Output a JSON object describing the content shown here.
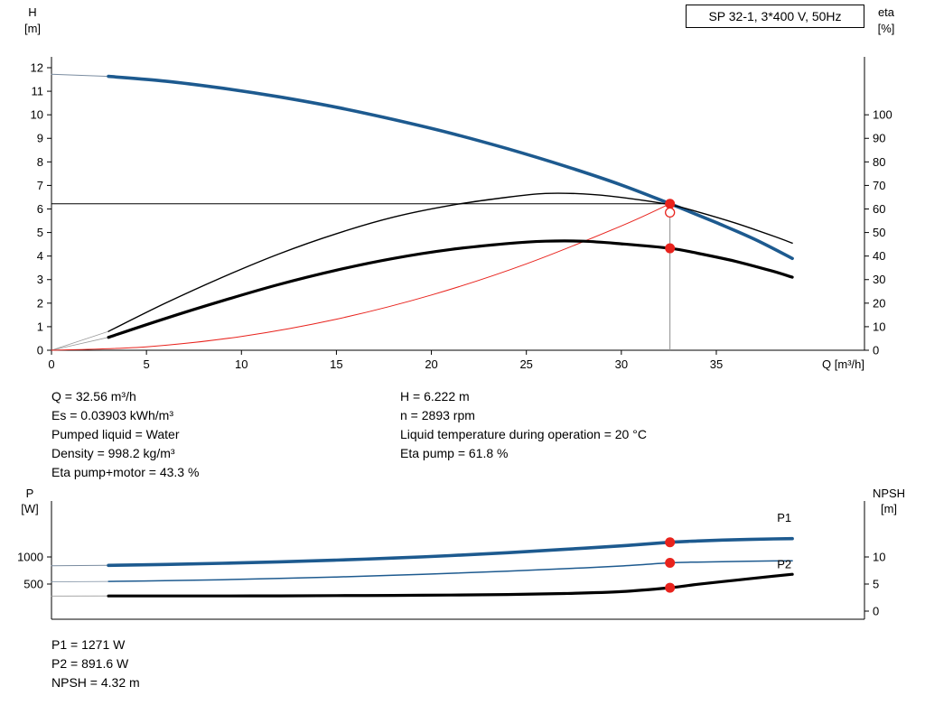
{
  "title_box": "SP 32-1, 3*400 V, 50Hz",
  "duty_info": {
    "col1": [
      "Q = 32.56 m³/h",
      "Es = 0.03903 kWh/m³",
      "Pumped liquid = Water",
      "Density = 998.2 kg/m³",
      "Eta pump+motor = 43.3 %"
    ],
    "col2": [
      "H = 6.222 m",
      "n = 2893 rpm",
      "Liquid temperature during operation = 20 °C",
      "Eta pump = 61.8 %"
    ]
  },
  "power_info": [
    "P1 = 1271 W",
    "P2 = 891.6 W",
    "NPSH = 4.32 m"
  ],
  "colors": {
    "curve_blue": "#1d5a8f",
    "curve_black": "#000000",
    "duty_red": "#e8231d",
    "guide_gray": "#8c8c8c"
  },
  "chart_data": [
    {
      "type": "line",
      "name": "qh-eta-chart",
      "x": {
        "label": "Q [m³/h]",
        "min": 0,
        "max": 42.8,
        "ticks": [
          0,
          5,
          10,
          15,
          20,
          25,
          30,
          35
        ]
      },
      "y_left": {
        "label": "H",
        "unit": "[m]",
        "min": 0,
        "max": 12.46,
        "ticks": [
          0,
          1,
          2,
          3,
          4,
          5,
          6,
          7,
          8,
          9,
          10,
          11,
          12
        ]
      },
      "y_right": {
        "label": "eta",
        "unit": "[%]",
        "min": 0,
        "max": 124.6,
        "ticks": [
          0,
          10,
          20,
          30,
          40,
          50,
          60,
          70,
          80,
          90,
          100
        ]
      },
      "duty_point": {
        "q": 32.56,
        "h": 6.222,
        "eta_pump": 61.8,
        "eta_pump_motor": 43.3
      },
      "guides": [
        {
          "type": "v",
          "q": 32.56,
          "v": 6.222,
          "axis": "left",
          "color": "#8c8c8c"
        },
        {
          "type": "h",
          "v": 6.222,
          "q1": 0,
          "q2": 32.56,
          "axis": "left",
          "color": "#000000"
        }
      ],
      "series": [
        {
          "name": "h-curve-extension",
          "axis": "left",
          "color": "#7a8ca0",
          "width": 1,
          "smooth": false,
          "points": [
            [
              0,
              11.72
            ],
            [
              3,
              11.63
            ]
          ]
        },
        {
          "name": "eta-pump-extension",
          "axis": "right",
          "color": "#9a9a9a",
          "width": 0.8,
          "smooth": false,
          "points": [
            [
              0,
              0
            ],
            [
              3,
              8
            ]
          ]
        },
        {
          "name": "eta-pump-motor-extension",
          "axis": "right",
          "color": "#9a9a9a",
          "width": 0.8,
          "smooth": false,
          "points": [
            [
              0,
              0
            ],
            [
              3,
              5.5
            ]
          ]
        },
        {
          "name": "system-curve",
          "axis": "left",
          "color": "#e8231d",
          "width": 1,
          "points": [
            [
              0,
              0
            ],
            [
              5,
              0.147
            ],
            [
              10,
              0.587
            ],
            [
              15,
              1.32
            ],
            [
              20,
              2.347
            ],
            [
              25,
              3.668
            ],
            [
              30,
              5.281
            ],
            [
              32.56,
              6.222
            ]
          ]
        },
        {
          "name": "h-curve",
          "axis": "left",
          "color": "#1d5a8f",
          "width": 3.6,
          "points": [
            [
              3,
              11.63
            ],
            [
              6,
              11.43
            ],
            [
              9,
              11.13
            ],
            [
              12,
              10.76
            ],
            [
              15,
              10.32
            ],
            [
              18,
              9.8
            ],
            [
              21,
              9.22
            ],
            [
              24,
              8.56
            ],
            [
              27,
              7.83
            ],
            [
              30,
              7.02
            ],
            [
              32.56,
              6.222
            ],
            [
              35,
              5.42
            ],
            [
              37,
              4.72
            ],
            [
              39,
              3.9
            ]
          ]
        },
        {
          "name": "eta-pump-curve",
          "axis": "right",
          "color": "#000000",
          "width": 1.4,
          "points": [
            [
              3,
              8
            ],
            [
              6,
              20
            ],
            [
              9,
              31
            ],
            [
              12,
              41
            ],
            [
              15,
              49.5
            ],
            [
              18,
              56.5
            ],
            [
              21,
              61.5
            ],
            [
              24,
              65
            ],
            [
              26,
              66.6
            ],
            [
              28,
              66.4
            ],
            [
              30,
              64.9
            ],
            [
              32.56,
              61.8
            ],
            [
              34,
              58.8
            ],
            [
              36,
              54
            ],
            [
              38,
              48.5
            ],
            [
              39,
              45.5
            ]
          ]
        },
        {
          "name": "eta-pump-motor-curve",
          "axis": "right",
          "color": "#000000",
          "width": 3.2,
          "points": [
            [
              3,
              5.5
            ],
            [
              6,
              13.5
            ],
            [
              9,
              21
            ],
            [
              12,
              28
            ],
            [
              15,
              34
            ],
            [
              18,
              39
            ],
            [
              21,
              42.8
            ],
            [
              24,
              45.3
            ],
            [
              26,
              46.3
            ],
            [
              28,
              46.3
            ],
            [
              30,
              45.2
            ],
            [
              32.56,
              43.3
            ],
            [
              34,
              41.2
            ],
            [
              36,
              37.8
            ],
            [
              38,
              33.5
            ],
            [
              39,
              31
            ]
          ]
        }
      ],
      "labels": [],
      "markers": [
        {
          "q": 32.56,
          "v": 6.222,
          "axis": "left",
          "type": "filled",
          "color": "#e8231d"
        },
        {
          "q": 32.56,
          "v": 5.85,
          "axis": "left",
          "type": "open",
          "color": "#e8231d"
        },
        {
          "q": 32.56,
          "v": 43.3,
          "axis": "right",
          "type": "filled",
          "color": "#e8231d"
        }
      ]
    },
    {
      "type": "line",
      "name": "power-npsh-chart",
      "x": {
        "label": "",
        "min": 0,
        "max": 42.8,
        "ticks": []
      },
      "y_left": {
        "label": "P",
        "unit": "[W]",
        "min": -150,
        "max": 2033,
        "ticks": [
          500,
          1000
        ]
      },
      "y_right": {
        "label": "NPSH",
        "unit": "[m]",
        "min": -1.5,
        "max": 20.33,
        "ticks": [
          0,
          5,
          10
        ]
      },
      "duty_point": {
        "q": 32.56,
        "p1_w": 1271,
        "p2_w": 891.6,
        "npsh_m": 4.32
      },
      "guides": [],
      "series": [
        {
          "name": "p1-extension",
          "axis": "left",
          "color": "#7a8ca0",
          "width": 1,
          "smooth": false,
          "points": [
            [
              0,
              838
            ],
            [
              3,
              845
            ]
          ]
        },
        {
          "name": "p2-extension",
          "axis": "left",
          "color": "#7a8ca0",
          "width": 0.8,
          "smooth": false,
          "points": [
            [
              0,
              542
            ],
            [
              3,
              548
            ]
          ]
        },
        {
          "name": "npsh-extension",
          "axis": "right",
          "color": "#9a9a9a",
          "width": 0.8,
          "smooth": false,
          "points": [
            [
              0,
              2.78
            ],
            [
              3,
              2.8
            ]
          ]
        },
        {
          "name": "p1-curve",
          "axis": "left",
          "color": "#1d5a8f",
          "width": 3.6,
          "points": [
            [
              3,
              845
            ],
            [
              6,
              862
            ],
            [
              9,
              884
            ],
            [
              12,
              910
            ],
            [
              15,
              942
            ],
            [
              18,
              980
            ],
            [
              21,
              1025
            ],
            [
              24,
              1078
            ],
            [
              27,
              1140
            ],
            [
              30,
              1205
            ],
            [
              32.56,
              1271
            ],
            [
              34,
              1295
            ],
            [
              36,
              1318
            ],
            [
              38,
              1333
            ],
            [
              39,
              1338
            ]
          ]
        },
        {
          "name": "p2-curve",
          "axis": "left",
          "color": "#1d5a8f",
          "width": 1.5,
          "points": [
            [
              3,
              548
            ],
            [
              6,
              562
            ],
            [
              9,
              580
            ],
            [
              12,
              603
            ],
            [
              15,
              630
            ],
            [
              18,
              662
            ],
            [
              21,
              698
            ],
            [
              24,
              738
            ],
            [
              27,
              783
            ],
            [
              30,
              833
            ],
            [
              32.56,
              891.6
            ],
            [
              34,
              905
            ],
            [
              36,
              917
            ],
            [
              38,
              926
            ],
            [
              39,
              929
            ]
          ]
        },
        {
          "name": "npsh-curve",
          "axis": "right",
          "color": "#000000",
          "width": 3.2,
          "points": [
            [
              3,
              2.8
            ],
            [
              6,
              2.8
            ],
            [
              9,
              2.8
            ],
            [
              12,
              2.82
            ],
            [
              15,
              2.86
            ],
            [
              18,
              2.9
            ],
            [
              21,
              2.97
            ],
            [
              24,
              3.07
            ],
            [
              27,
              3.25
            ],
            [
              30,
              3.6
            ],
            [
              32.56,
              4.32
            ],
            [
              34,
              4.95
            ],
            [
              36,
              5.7
            ],
            [
              38,
              6.45
            ],
            [
              39,
              6.8
            ]
          ]
        }
      ],
      "labels": [
        {
          "text": "P1",
          "q": 38.2,
          "v": 1650,
          "axis": "left",
          "color": "#1d5a8f"
        },
        {
          "text": "P2",
          "q": 38.2,
          "v": 790,
          "axis": "left",
          "color": "#1d5a8f"
        }
      ],
      "markers": [
        {
          "q": 32.56,
          "v": 1271,
          "axis": "left",
          "type": "filled",
          "color": "#e8231d"
        },
        {
          "q": 32.56,
          "v": 891.6,
          "axis": "left",
          "type": "filled",
          "color": "#e8231d"
        },
        {
          "q": 32.56,
          "v": 4.32,
          "axis": "right",
          "type": "filled",
          "color": "#e8231d"
        }
      ]
    }
  ]
}
